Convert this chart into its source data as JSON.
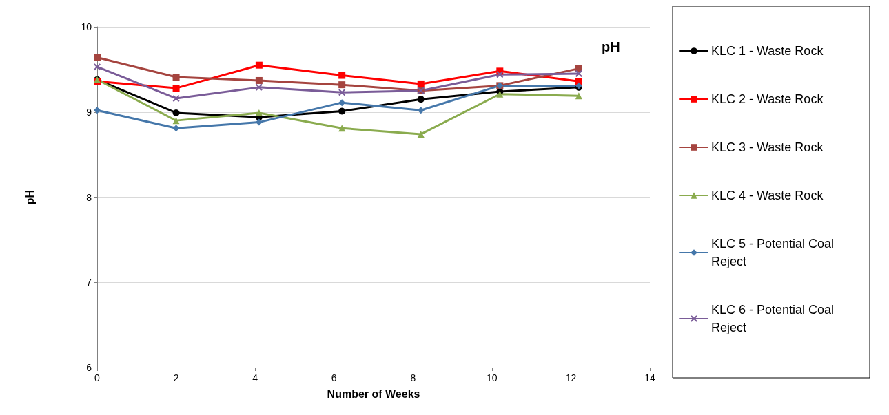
{
  "chart_data": {
    "type": "line",
    "title": "pH",
    "xlabel": "Number of Weeks",
    "ylabel": "pH",
    "xlim": [
      0,
      14
    ],
    "xticks": [
      0,
      2,
      4,
      6,
      8,
      10,
      12,
      14
    ],
    "ylim": [
      6,
      10
    ],
    "yticks": [
      6,
      7,
      8,
      9,
      10
    ],
    "grid": "y",
    "legend": "right",
    "line_style": "solid",
    "x": [
      0,
      2,
      4.1,
      6.2,
      8.2,
      10.2,
      12.2
    ],
    "series": [
      {
        "name": "KLC 1 - Waste Rock",
        "color": "#000000",
        "marker": "circle",
        "values": [
          9.38,
          8.99,
          8.94,
          9.01,
          9.15,
          9.24,
          9.29
        ]
      },
      {
        "name": "KLC 2 - Waste Rock",
        "color": "#ff0000",
        "marker": "square",
        "values": [
          9.36,
          9.28,
          9.55,
          9.43,
          9.33,
          9.48,
          9.36
        ]
      },
      {
        "name": "KLC 3 - Waste Rock",
        "color": "#a5443f",
        "marker": "square",
        "values": [
          9.64,
          9.41,
          9.37,
          9.32,
          9.25,
          9.31,
          9.51
        ]
      },
      {
        "name": "KLC 4 - Waste Rock",
        "color": "#8aab4e",
        "marker": "triangle",
        "values": [
          9.38,
          8.9,
          8.99,
          8.81,
          8.74,
          9.21,
          9.19
        ]
      },
      {
        "name": "KLC 5 - Potential Coal Reject",
        "color": "#4577aa",
        "marker": "diamond",
        "values": [
          9.02,
          8.81,
          8.88,
          9.11,
          9.02,
          9.31,
          9.31
        ]
      },
      {
        "name": "KLC 6 - Potential Coal Reject",
        "color": "#7a5c98",
        "marker": "cross",
        "values": [
          9.53,
          9.16,
          9.29,
          9.23,
          9.25,
          9.44,
          9.45
        ]
      }
    ]
  }
}
